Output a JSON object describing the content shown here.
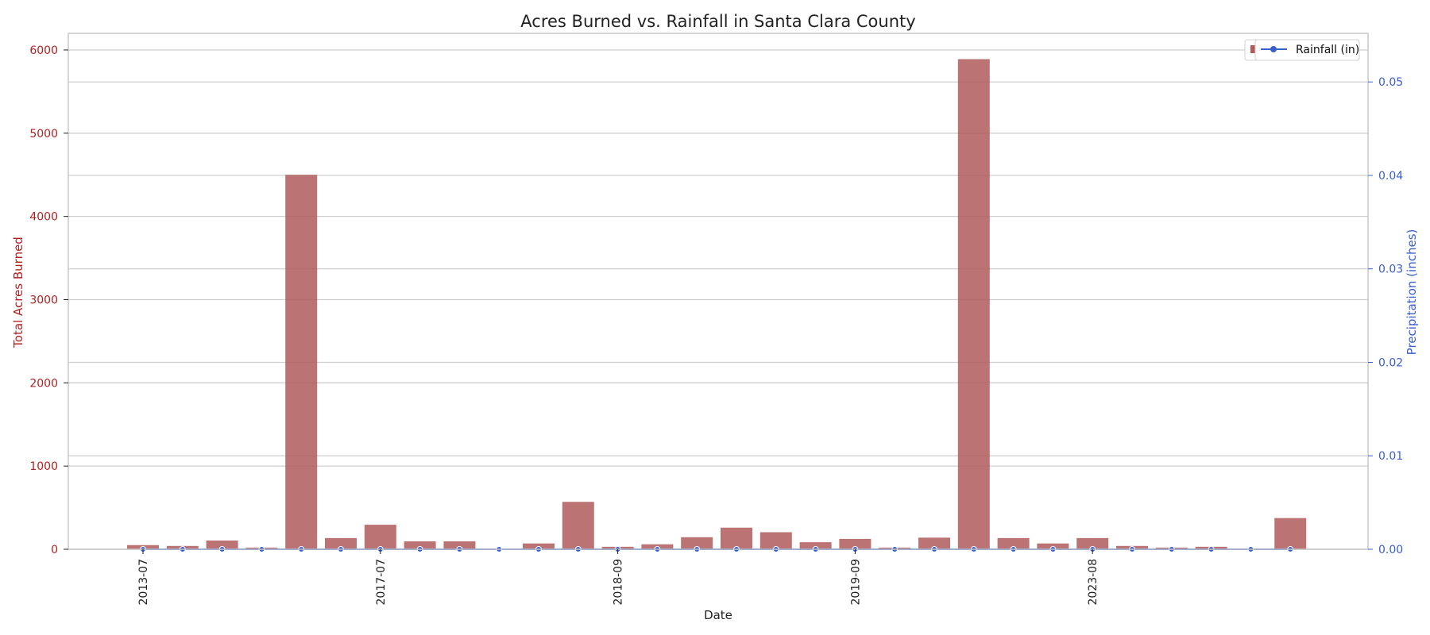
{
  "chart_data": {
    "type": "bar",
    "title": "Acres Burned vs. Rainfall in Santa Clara County",
    "xlabel": "Date",
    "ylabel_left": "Total Acres Burned",
    "ylabel_right": "Precipitation (inches)",
    "ylim_left": [
      0,
      6200
    ],
    "ylim_right": [
      0,
      0.0552
    ],
    "yticks_left": [
      0,
      1000,
      2000,
      3000,
      4000,
      5000,
      6000
    ],
    "yticks_right": [
      0.0,
      0.01,
      0.02,
      0.03,
      0.04,
      0.05
    ],
    "ytick_labels_left": [
      "0",
      "1000",
      "2000",
      "3000",
      "4000",
      "5000",
      "6000"
    ],
    "ytick_labels_right": [
      "0.00",
      "0.01",
      "0.02",
      "0.03",
      "0.04",
      "0.05"
    ],
    "grid": true,
    "legend_position": "top-right",
    "categories_count": 30,
    "x_tick_labels": [
      {
        "index": 0,
        "label": "2013-07"
      },
      {
        "index": 6,
        "label": "2017-07"
      },
      {
        "index": 12,
        "label": "2018-09"
      },
      {
        "index": 18,
        "label": "2019-09"
      },
      {
        "index": 24,
        "label": "2023-08"
      }
    ],
    "series": [
      {
        "name": "Acres Burned",
        "kind": "bar",
        "axis": "left",
        "color": "#b05a5a",
        "values": [
          50,
          40,
          105,
          20,
          4500,
          135,
          295,
          95,
          95,
          5,
          70,
          570,
          30,
          60,
          145,
          260,
          205,
          85,
          125,
          20,
          140,
          5890,
          135,
          70,
          135,
          40,
          20,
          30,
          5,
          375
        ]
      },
      {
        "name": "Rainfall (in)",
        "kind": "line",
        "axis": "right",
        "color": "#3a5fcd",
        "values": [
          0,
          0,
          0,
          0,
          0,
          0,
          0,
          0,
          0,
          0,
          0,
          0,
          0,
          0,
          0,
          0,
          0,
          0,
          0,
          0,
          0,
          0,
          0,
          0,
          0,
          0,
          0,
          0,
          0,
          0
        ]
      }
    ],
    "legend_entries": [
      "Rainfall (in)"
    ]
  }
}
